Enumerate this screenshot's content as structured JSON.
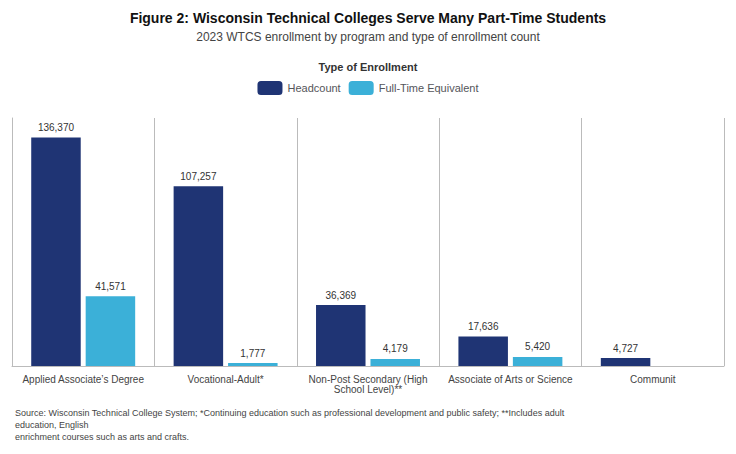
{
  "chart_data": {
    "type": "bar",
    "title": "Figure 2: Wisconsin Technical Colleges Serve Many Part-Time Students",
    "subtitle": "2023 WTCS enrollment by program and type of enrollment count",
    "footnote": "Source: Wisconsin Technical College System; *Continuing education such as professional development and public safety; **Includes adult education, English\nenrichment courses such as arts and crafts.",
    "categories": [
      "Applied Associate’s Degree",
      "Vocational-Adult*",
      "Non-Post Secondary (High\nSchool Level)**",
      "Associate of Arts or Science",
      "Communit"
    ],
    "series": [
      {
        "name": "Headcount",
        "color": "#1F3474",
        "values": [
          136370,
          107257,
          36369,
          17636,
          4727
        ],
        "value_labels": [
          "136,370",
          "107,257",
          "36,369",
          "17,636",
          "4,727"
        ]
      },
      {
        "name": "Full-Time Equivalent",
        "color": "#3BB0D8",
        "values": [
          41571,
          1777,
          4179,
          5420,
          null
        ],
        "value_labels": [
          "41,571",
          "1,777",
          "4,179",
          "5,420",
          null
        ]
      }
    ],
    "legend_title": "Type of Enrollment",
    "legend": "top",
    "ylim": [
      0,
      148000
    ],
    "grid": false,
    "tick_labels": "x",
    "data_labels": true
  }
}
